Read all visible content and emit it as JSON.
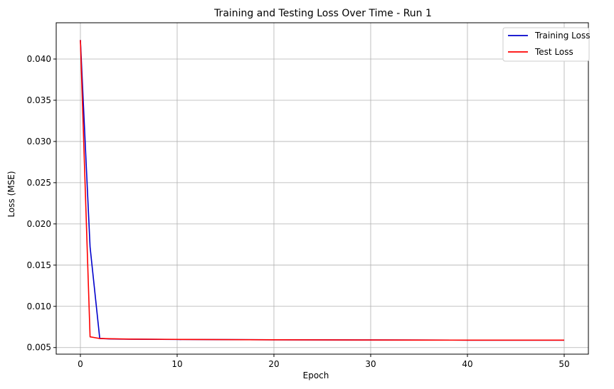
{
  "chart_data": {
    "type": "line",
    "title": "Training and Testing Loss Over Time - Run 1",
    "xlabel": "Epoch",
    "ylabel": "Loss (MSE)",
    "xlim": [
      -2.5,
      52.5
    ],
    "ylim": [
      0.0042,
      0.0444
    ],
    "xticks": [
      0,
      10,
      20,
      30,
      40,
      50
    ],
    "yticks": [
      0.005,
      0.01,
      0.015,
      0.02,
      0.025,
      0.03,
      0.035,
      0.04
    ],
    "ytick_labels": [
      "0.005",
      "0.010",
      "0.015",
      "0.020",
      "0.025",
      "0.030",
      "0.035",
      "0.040"
    ],
    "grid": true,
    "legend_position": "top-right",
    "series": [
      {
        "name": "Training Loss",
        "color": "#0000cc",
        "x": [
          0,
          1,
          2,
          3,
          4,
          5,
          10,
          15,
          20,
          25,
          30,
          35,
          40,
          45,
          50
        ],
        "y": [
          0.0423,
          0.0172,
          0.0061,
          0.00605,
          0.00603,
          0.00602,
          0.00598,
          0.00596,
          0.00594,
          0.00593,
          0.00592,
          0.00591,
          0.0059,
          0.0059,
          0.0059
        ]
      },
      {
        "name": "Test Loss",
        "color": "#ff0000",
        "x": [
          0,
          1,
          2,
          3,
          4,
          5,
          10,
          15,
          20,
          25,
          30,
          35,
          40,
          45,
          50
        ],
        "y": [
          0.0423,
          0.0063,
          0.0061,
          0.00607,
          0.00605,
          0.00603,
          0.00599,
          0.00596,
          0.00594,
          0.00593,
          0.00592,
          0.00591,
          0.0059,
          0.0059,
          0.0059
        ]
      }
    ]
  }
}
